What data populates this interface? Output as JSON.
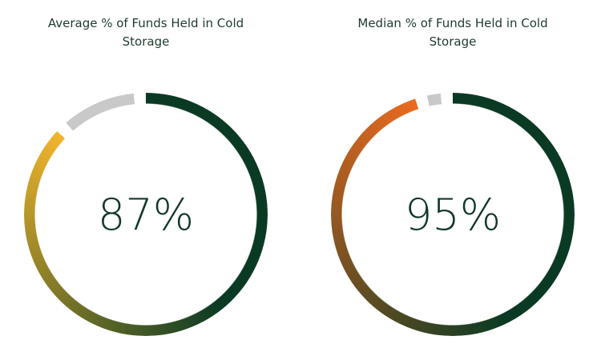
{
  "chart_data": [
    {
      "type": "donut",
      "title": "Average % of Funds Held in Cold Storage",
      "value": 87,
      "value_label": "87%",
      "ylim": [
        0,
        100
      ],
      "colors": [
        "#0b3a24",
        "#f2b52c"
      ],
      "track_color": "#c9c9c9"
    },
    {
      "type": "donut",
      "title": "Median % of Funds Held in Cold Storage",
      "value": 95,
      "value_label": "95%",
      "ylim": [
        0,
        100
      ],
      "colors": [
        "#0b3a24",
        "#ea6a20"
      ],
      "track_color": "#c9c9c9"
    }
  ]
}
